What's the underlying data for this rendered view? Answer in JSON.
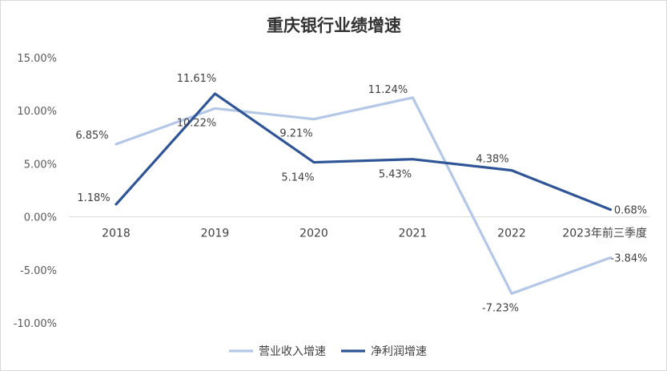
{
  "chart_data": {
    "type": "line",
    "title": "重庆银行业绩增速",
    "categories": [
      "2018",
      "2019",
      "2020",
      "2021",
      "2022",
      "2023年前三季度"
    ],
    "ylim": [
      -10,
      15
    ],
    "yticks": [
      "15.00%",
      "10.00%",
      "5.00%",
      "0.00%",
      "-5.00%",
      "-10.00%"
    ],
    "ytick_values": [
      15,
      10,
      5,
      0,
      -5,
      -10
    ],
    "grid": false,
    "legend_position": "bottom",
    "series": [
      {
        "name": "营业收入增速",
        "color": "#b4c7e7",
        "values": [
          6.85,
          10.22,
          9.21,
          11.24,
          -7.23,
          -3.84
        ],
        "labels": [
          "6.85%",
          "10.22%",
          "9.21%",
          "11.24%",
          "-7.23%",
          "-3.84%"
        ]
      },
      {
        "name": "净利润增速",
        "color": "#2f5597",
        "values": [
          1.18,
          11.61,
          5.14,
          5.43,
          4.38,
          0.68
        ],
        "labels": [
          "1.18%",
          "11.61%",
          "5.14%",
          "5.43%",
          "4.38%",
          "0.68%"
        ]
      }
    ]
  }
}
